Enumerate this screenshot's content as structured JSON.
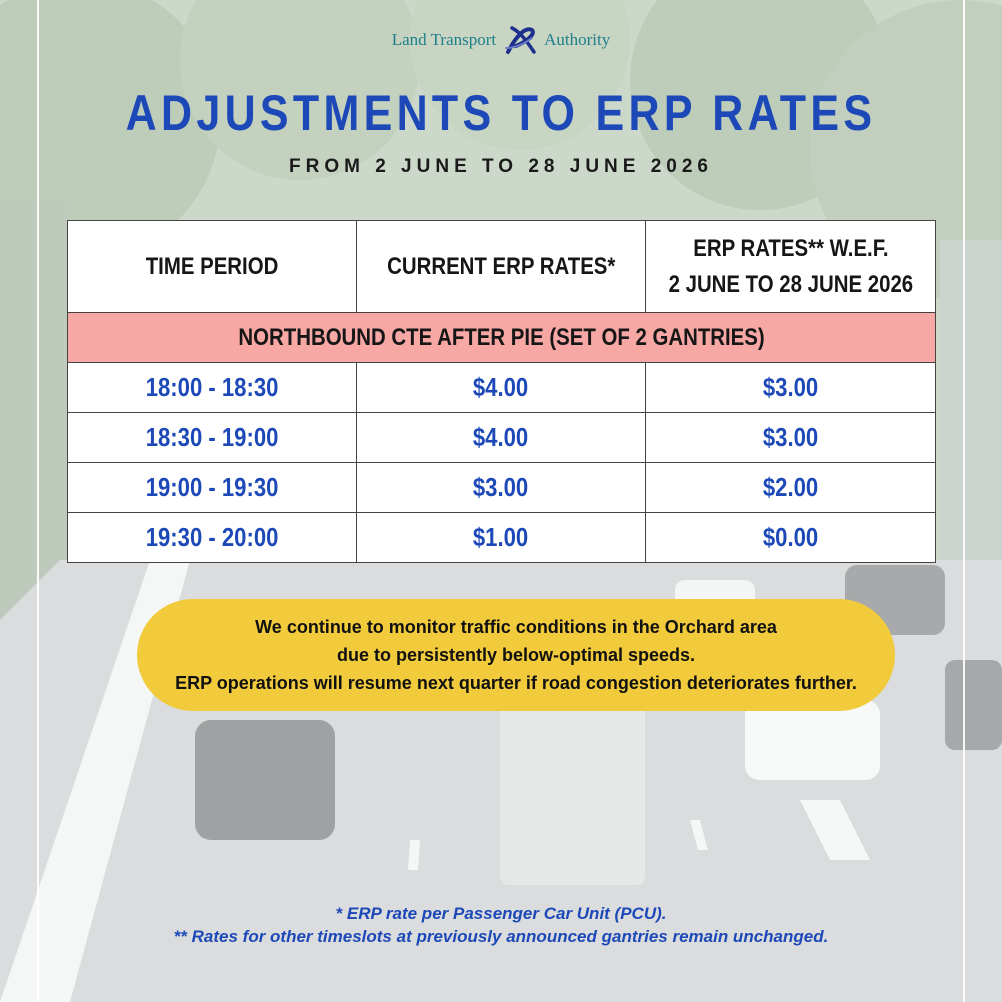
{
  "logo": {
    "left_text": "Land Transport",
    "right_text": "Authority"
  },
  "title": "ADJUSTMENTS TO ERP RATES",
  "subtitle": "FROM 2 JUNE TO 28 JUNE 2026",
  "table": {
    "headers": [
      "TIME PERIOD",
      "CURRENT ERP RATES*",
      "ERP RATES** W.E.F."
    ],
    "header3_line2": "2 JUNE TO 28 JUNE 2026",
    "section_label": "NORTHBOUND CTE AFTER PIE (SET OF 2 GANTRIES)",
    "rows": [
      {
        "period": "18:00 - 18:30",
        "current": "$4.00",
        "new": "$3.00"
      },
      {
        "period": "18:30 - 19:00",
        "current": "$4.00",
        "new": "$3.00"
      },
      {
        "period": "19:00 - 19:30",
        "current": "$3.00",
        "new": "$2.00"
      },
      {
        "period": "19:30 - 20:00",
        "current": "$1.00",
        "new": "$0.00"
      }
    ]
  },
  "notice": {
    "line1": "We continue to monitor traffic conditions in the Orchard area",
    "line2": "due to persistently below-optimal speeds.",
    "line3": "ERP operations will resume next quarter if road congestion deteriorates further."
  },
  "footnotes": {
    "note1": "* ERP rate per Passenger Car Unit (PCU).",
    "note2": "** Rates for other timeslots at previously announced gantries remain unchanged."
  },
  "colors": {
    "title_blue": "#1d49b8",
    "section_pink": "#f7a7a4",
    "notice_yellow": "#f1cb3c",
    "logo_teal": "#1e7f8c"
  }
}
